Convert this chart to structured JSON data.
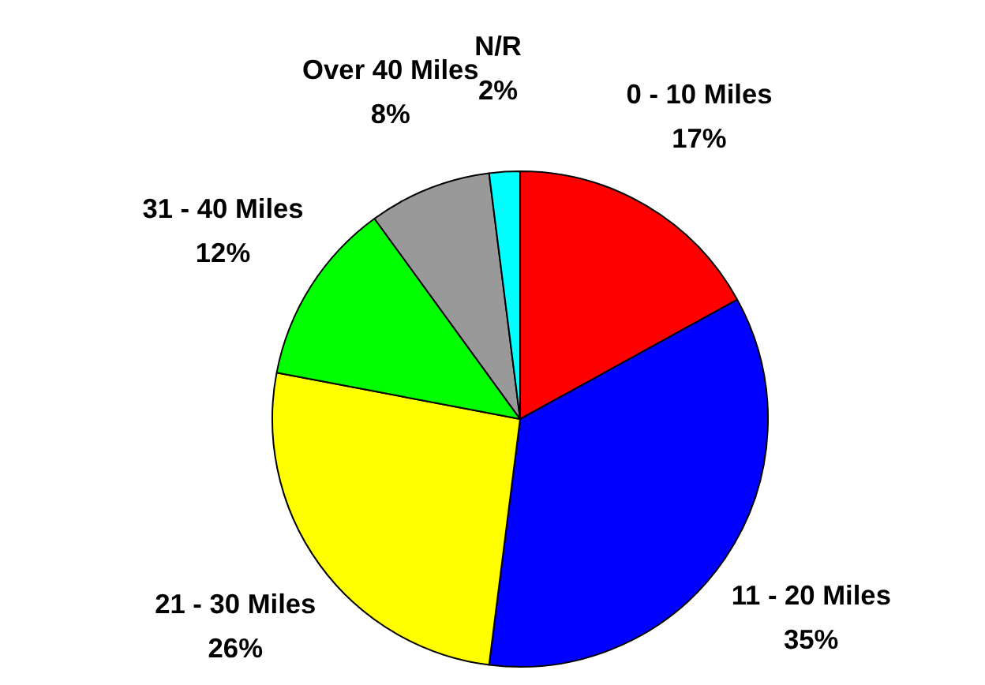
{
  "chart_data": {
    "type": "pie",
    "categories": [
      "0 - 10 Miles",
      "11 - 20 Miles",
      "21 - 30 Miles",
      "31 - 40 Miles",
      "Over 40 Miles",
      "N/R"
    ],
    "values": [
      17,
      35,
      26,
      12,
      8,
      2
    ],
    "value_labels": [
      "17%",
      "35%",
      "26%",
      "12%",
      "8%",
      "2%"
    ],
    "colors": [
      "#ff0000",
      "#0000ff",
      "#ffff00",
      "#00ff00",
      "#999999",
      "#00ffff"
    ]
  }
}
